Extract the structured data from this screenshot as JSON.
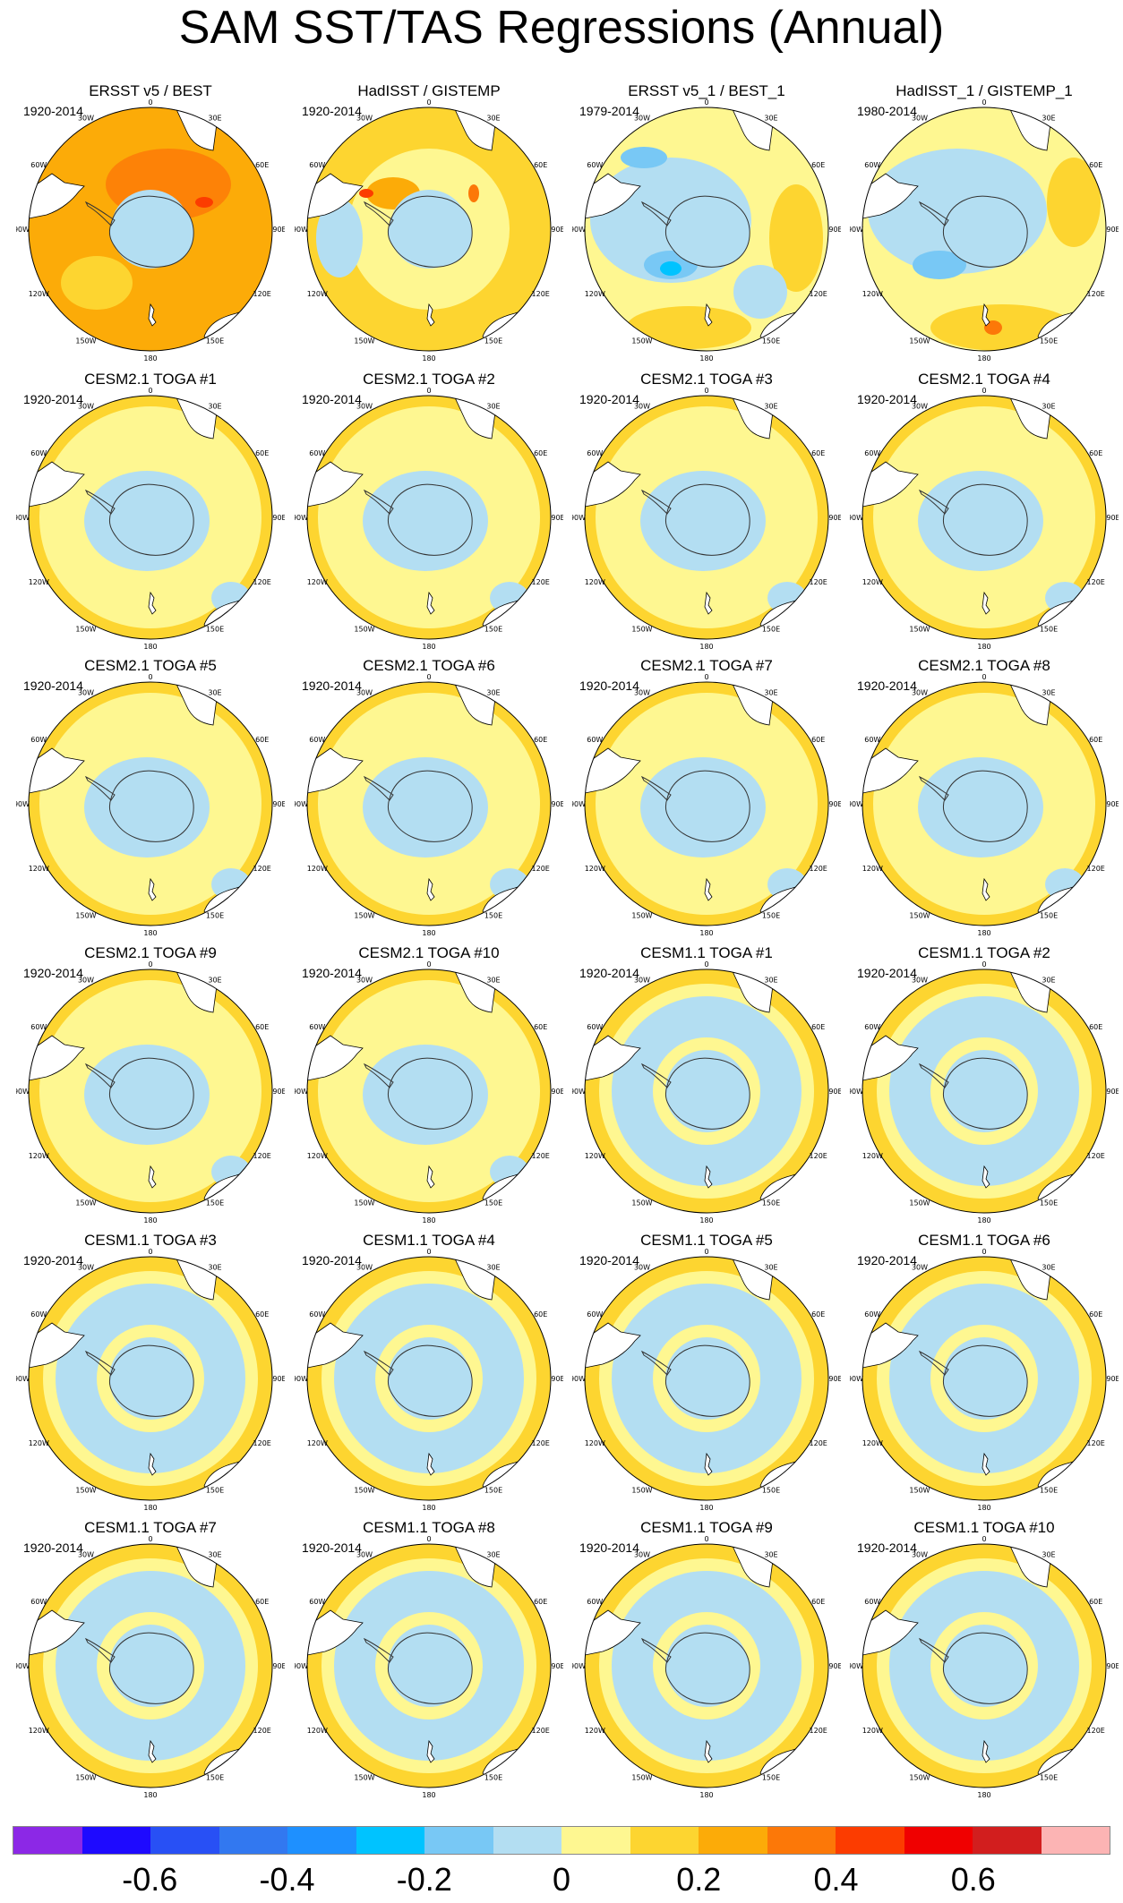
{
  "title": "SAM SST/TAS Regressions (Annual)",
  "colors": {
    "neg_light": "#b3def2",
    "zero_pos": "#fef791",
    "pos_1": "#fdd530",
    "pos_2": "#fcab08",
    "pos_3": "#fc7808",
    "pos_4": "#fc3c00",
    "land": "#ffffff"
  },
  "longitude_labels": [
    "0",
    "30E",
    "60E",
    "90E",
    "120E",
    "150E",
    "180",
    "150W",
    "120W",
    "90W",
    "60W",
    "30W"
  ],
  "panels": [
    {
      "title": "ERSST v5 / BEST",
      "period": "1920-2014",
      "style": "obs1"
    },
    {
      "title": "HadISST / GISTEMP",
      "period": "1920-2014",
      "style": "obs2"
    },
    {
      "title": "ERSST v5_1 / BEST_1",
      "period": "1979-2014",
      "style": "obs3"
    },
    {
      "title": "HadISST_1 / GISTEMP_1",
      "period": "1980-2014",
      "style": "obs4"
    },
    {
      "title": "CESM2.1 TOGA #1",
      "period": "1920-2014",
      "style": "cesm2"
    },
    {
      "title": "CESM2.1 TOGA #2",
      "period": "1920-2014",
      "style": "cesm2"
    },
    {
      "title": "CESM2.1 TOGA #3",
      "period": "1920-2014",
      "style": "cesm2"
    },
    {
      "title": "CESM2.1 TOGA #4",
      "period": "1920-2014",
      "style": "cesm2"
    },
    {
      "title": "CESM2.1 TOGA #5",
      "period": "1920-2014",
      "style": "cesm2"
    },
    {
      "title": "CESM2.1 TOGA #6",
      "period": "1920-2014",
      "style": "cesm2"
    },
    {
      "title": "CESM2.1 TOGA #7",
      "period": "1920-2014",
      "style": "cesm2"
    },
    {
      "title": "CESM2.1 TOGA #8",
      "period": "1920-2014",
      "style": "cesm2"
    },
    {
      "title": "CESM2.1 TOGA #9",
      "period": "1920-2014",
      "style": "cesm2"
    },
    {
      "title": "CESM2.1 TOGA #10",
      "period": "1920-2014",
      "style": "cesm2"
    },
    {
      "title": "CESM1.1 TOGA #1",
      "period": "1920-2014",
      "style": "cesm1"
    },
    {
      "title": "CESM1.1 TOGA #2",
      "period": "1920-2014",
      "style": "cesm1"
    },
    {
      "title": "CESM1.1 TOGA #3",
      "period": "1920-2014",
      "style": "cesm1"
    },
    {
      "title": "CESM1.1 TOGA #4",
      "period": "1920-2014",
      "style": "cesm1"
    },
    {
      "title": "CESM1.1 TOGA #5",
      "period": "1920-2014",
      "style": "cesm1"
    },
    {
      "title": "CESM1.1 TOGA #6",
      "period": "1920-2014",
      "style": "cesm1"
    },
    {
      "title": "CESM1.1 TOGA #7",
      "period": "1920-2014",
      "style": "cesm1"
    },
    {
      "title": "CESM1.1 TOGA #8",
      "period": "1920-2014",
      "style": "cesm1"
    },
    {
      "title": "CESM1.1 TOGA #9",
      "period": "1920-2014",
      "style": "cesm1"
    },
    {
      "title": "CESM1.1 TOGA #10",
      "period": "1920-2014",
      "style": "cesm1"
    }
  ],
  "colorbar": {
    "colors": [
      "#8c28e6",
      "#1e0aff",
      "#2850f5",
      "#3278f0",
      "#1e90ff",
      "#00c3ff",
      "#78c8f5",
      "#b3def2",
      "#fef791",
      "#fdd530",
      "#fcab08",
      "#fc7808",
      "#fc3c00",
      "#f00000",
      "#d21e1e",
      "#fcb4b4"
    ],
    "labels": [
      "-0.6",
      "-0.4",
      "-0.2",
      "0",
      "0.2",
      "0.4",
      "0.6"
    ],
    "label_box_boundaries": [
      2,
      4,
      6,
      8,
      10,
      12,
      14
    ]
  }
}
